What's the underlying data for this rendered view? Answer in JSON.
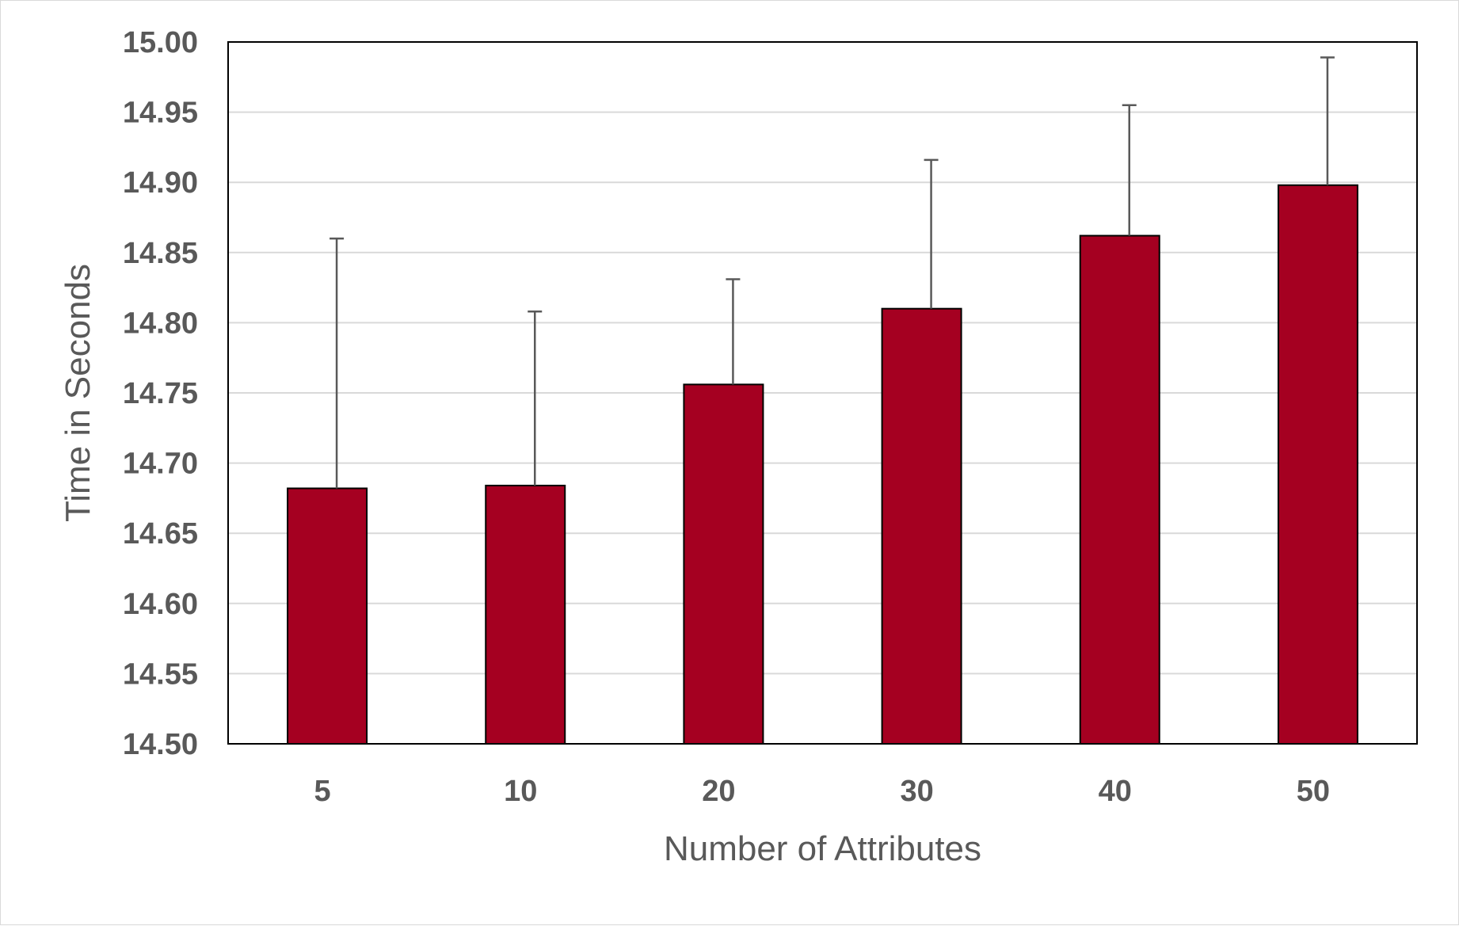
{
  "chart_data": {
    "type": "bar",
    "title": "",
    "xlabel": "Number of Attributes",
    "ylabel": "Time in Seconds",
    "categories": [
      "5",
      "10",
      "20",
      "30",
      "40",
      "50"
    ],
    "series": [
      {
        "values": [
          14.682,
          14.684,
          14.756,
          14.81,
          14.862,
          14.898
        ],
        "error_upper": [
          14.86,
          14.808,
          14.831,
          14.916,
          14.955,
          14.989
        ]
      }
    ],
    "ylim": [
      14.5,
      15.0
    ],
    "yticks": [
      "14.50",
      "14.55",
      "14.60",
      "14.65",
      "14.70",
      "14.75",
      "14.80",
      "14.85",
      "14.90",
      "14.95",
      "15.00"
    ],
    "grid": true,
    "legend": "none",
    "colors": {
      "bar": "#A50021",
      "bar_outline": "#000000",
      "error_bar": "#595959",
      "grid": "#d9d9d9",
      "text": "#595959"
    }
  }
}
